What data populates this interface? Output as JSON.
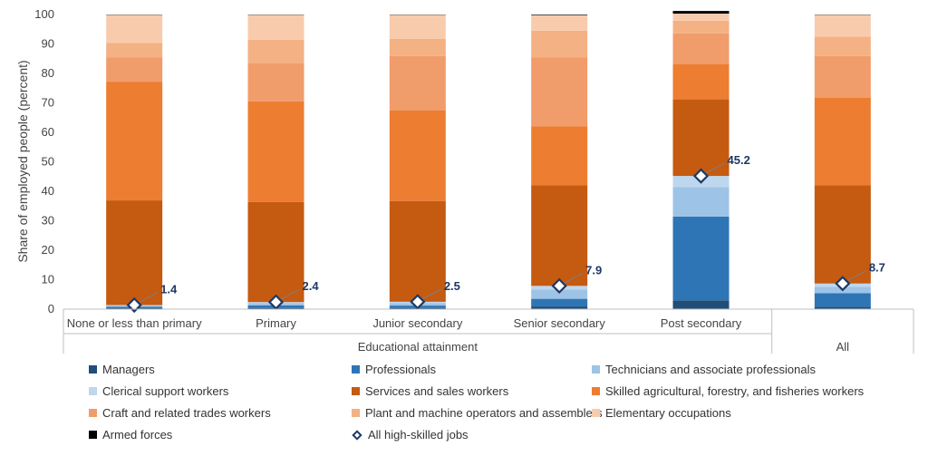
{
  "chart_data": {
    "type": "bar",
    "stacked": true,
    "ylabel": "Share of employed people (percent)",
    "ylim": [
      0,
      100
    ],
    "yticks": [
      0,
      10,
      20,
      30,
      40,
      50,
      60,
      70,
      80,
      90,
      100
    ],
    "categories": [
      "None or less than primary",
      "Primary",
      "Junior secondary",
      "Senior secondary",
      "Post secondary",
      "All"
    ],
    "group_labels": [
      {
        "label": "Educational attainment",
        "span": [
          0,
          4
        ]
      },
      {
        "label": "All",
        "span": [
          5,
          5
        ]
      }
    ],
    "series": [
      {
        "name": "Managers",
        "color": "#1f4e79",
        "values": [
          0.3,
          0.4,
          0.4,
          0.9,
          3.0,
          0.8
        ]
      },
      {
        "name": "Professionals",
        "color": "#2e75b6",
        "values": [
          0.5,
          0.9,
          0.8,
          2.6,
          28.4,
          4.6
        ]
      },
      {
        "name": "Technicians and associate professionals",
        "color": "#9dc3e6",
        "values": [
          0.4,
          0.8,
          0.9,
          3.2,
          10.0,
          2.2
        ]
      },
      {
        "name": "Clerical support workers",
        "color": "#bdd7ee",
        "values": [
          0.2,
          0.3,
          0.4,
          1.2,
          3.8,
          1.1
        ]
      },
      {
        "name": "Services and sales workers",
        "color": "#c55a11",
        "values": [
          35.5,
          34.0,
          34.2,
          34.2,
          26.0,
          33.4
        ]
      },
      {
        "name": "Skilled agricultural, forestry, and fisheries workers",
        "color": "#ed7d31",
        "values": [
          40.3,
          34.1,
          30.8,
          20.0,
          12.0,
          29.7
        ]
      },
      {
        "name": "Craft and related trades workers",
        "color": "#f19c6b",
        "values": [
          8.2,
          12.9,
          18.4,
          23.4,
          10.4,
          14.1
        ]
      },
      {
        "name": "Plant and machine operators and assemblers",
        "color": "#f4b183",
        "values": [
          4.9,
          8.0,
          5.8,
          9.0,
          4.3,
          6.6
        ]
      },
      {
        "name": "Elementary occupations",
        "color": "#f8cbad",
        "values": [
          9.6,
          8.5,
          8.2,
          5.3,
          2.4,
          7.4
        ]
      },
      {
        "name": "Armed forces",
        "color": "#000000",
        "values": [
          0.1,
          0.1,
          0.1,
          0.2,
          0.9,
          0.1
        ]
      }
    ],
    "high_skilled": {
      "name": "All high-skilled jobs",
      "values": [
        1.4,
        2.4,
        2.5,
        7.9,
        45.2,
        8.7
      ],
      "labels": [
        "1.4",
        "2.4",
        "2.5",
        "7.9",
        "45.2",
        "8.7"
      ]
    }
  }
}
